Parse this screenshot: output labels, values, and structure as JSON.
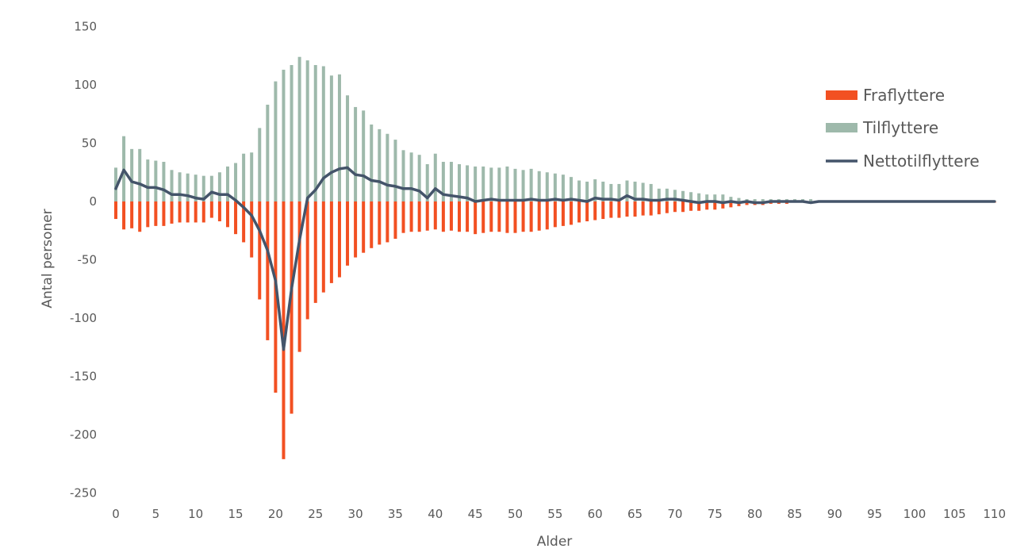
{
  "chart_data": {
    "type": "bar",
    "title": "",
    "xlabel": "Alder",
    "ylabel": "Antal personer",
    "ylim": [
      -250,
      150
    ],
    "yticks": [
      150,
      100,
      50,
      0,
      -50,
      -100,
      -150,
      -200,
      -250
    ],
    "xlim": [
      0,
      110
    ],
    "xticks": [
      0,
      5,
      10,
      15,
      20,
      25,
      30,
      35,
      40,
      45,
      50,
      55,
      60,
      65,
      70,
      75,
      80,
      85,
      90,
      95,
      100,
      105,
      110
    ],
    "grid": false,
    "legend_position": "right",
    "x": [
      0,
      1,
      2,
      3,
      4,
      5,
      6,
      7,
      8,
      9,
      10,
      11,
      12,
      13,
      14,
      15,
      16,
      17,
      18,
      19,
      20,
      21,
      22,
      23,
      24,
      25,
      26,
      27,
      28,
      29,
      30,
      31,
      32,
      33,
      34,
      35,
      36,
      37,
      38,
      39,
      40,
      41,
      42,
      43,
      44,
      45,
      46,
      47,
      48,
      49,
      50,
      51,
      52,
      53,
      54,
      55,
      56,
      57,
      58,
      59,
      60,
      61,
      62,
      63,
      64,
      65,
      66,
      67,
      68,
      69,
      70,
      71,
      72,
      73,
      74,
      75,
      76,
      77,
      78,
      79,
      80,
      81,
      82,
      83,
      84,
      85,
      86,
      87,
      88,
      89,
      90,
      91,
      92,
      93,
      94,
      95,
      96,
      97,
      98,
      99,
      100,
      101,
      102,
      103,
      104,
      105,
      106,
      107,
      108,
      109,
      110
    ],
    "series": [
      {
        "name": "Fraflyttere",
        "kind": "bar",
        "color": "#f25022",
        "values": [
          -15,
          -24,
          -23,
          -26,
          -22,
          -21,
          -21,
          -19,
          -18,
          -18,
          -18,
          -18,
          -14,
          -17,
          -22,
          -28,
          -35,
          -48,
          -84,
          -119,
          -164,
          -221,
          -182,
          -129,
          -101,
          -87,
          -78,
          -70,
          -65,
          -55,
          -48,
          -44,
          -40,
          -37,
          -35,
          -32,
          -27,
          -26,
          -26,
          -25,
          -24,
          -26,
          -25,
          -26,
          -26,
          -28,
          -27,
          -26,
          -26,
          -27,
          -27,
          -26,
          -26,
          -25,
          -24,
          -22,
          -21,
          -20,
          -18,
          -17,
          -16,
          -15,
          -14,
          -14,
          -13,
          -13,
          -12,
          -12,
          -11,
          -10,
          -9,
          -9,
          -8,
          -8,
          -7,
          -7,
          -6,
          -5,
          -4,
          -3,
          -3,
          -3,
          -2,
          -2,
          -2,
          -1,
          -1,
          -1,
          -1,
          -1,
          -1,
          -1,
          -1,
          -1,
          -1,
          -1,
          -1,
          -1,
          -1,
          -1,
          -1,
          -1,
          -1,
          -1,
          -1,
          -1,
          -1,
          -1,
          -1,
          -1,
          -1
        ]
      },
      {
        "name": "Tilflyttere",
        "kind": "bar",
        "color": "#9eb9ab",
        "values": [
          29,
          56,
          45,
          45,
          36,
          35,
          34,
          27,
          25,
          24,
          23,
          22,
          22,
          25,
          30,
          33,
          41,
          42,
          63,
          83,
          103,
          113,
          117,
          124,
          121,
          117,
          116,
          108,
          109,
          91,
          81,
          78,
          66,
          62,
          58,
          53,
          44,
          42,
          40,
          32,
          41,
          34,
          34,
          32,
          31,
          30,
          30,
          29,
          29,
          30,
          28,
          27,
          28,
          26,
          25,
          24,
          23,
          21,
          18,
          17,
          19,
          17,
          15,
          15,
          18,
          17,
          16,
          15,
          11,
          11,
          10,
          9,
          8,
          7,
          6,
          6,
          6,
          4,
          3,
          2,
          2,
          2,
          2,
          2,
          2,
          2,
          2,
          2,
          1,
          1,
          1,
          1,
          1,
          1,
          1,
          1,
          1,
          1,
          1,
          1,
          1,
          1,
          1,
          1,
          1,
          1,
          1,
          1,
          1,
          1,
          1
        ]
      },
      {
        "name": "Nettotilflyttere",
        "kind": "line",
        "color": "#44546a",
        "values": [
          11,
          27,
          17,
          15,
          12,
          12,
          10,
          6,
          6,
          5,
          3,
          2,
          8,
          6,
          6,
          1,
          -5,
          -12,
          -25,
          -42,
          -68,
          -127,
          -75,
          -33,
          3,
          10,
          20,
          25,
          28,
          29,
          23,
          22,
          18,
          17,
          14,
          13,
          11,
          11,
          9,
          3,
          11,
          6,
          5,
          4,
          3,
          0,
          1,
          2,
          1,
          1,
          1,
          1,
          2,
          1,
          1,
          2,
          1,
          2,
          1,
          0,
          3,
          2,
          2,
          1,
          5,
          2,
          2,
          1,
          1,
          2,
          2,
          1,
          0,
          -1,
          0,
          0,
          -1,
          0,
          -1,
          0,
          -1,
          -1,
          0,
          0,
          0,
          0,
          0,
          -1,
          0,
          0,
          0,
          0,
          0,
          0,
          0,
          0,
          0,
          0,
          0,
          0,
          0,
          0,
          0,
          0,
          0,
          0,
          0,
          0,
          0,
          0,
          0
        ]
      }
    ]
  }
}
